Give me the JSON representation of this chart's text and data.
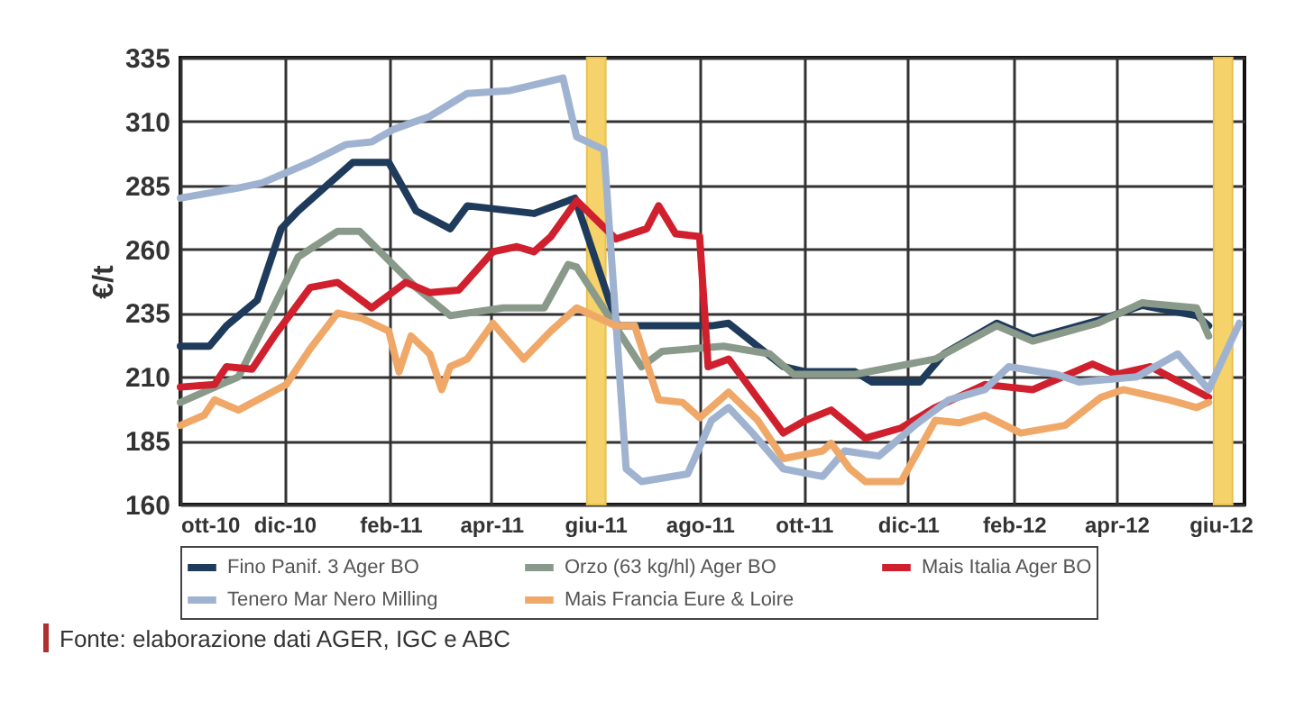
{
  "chart_data": {
    "type": "line",
    "ylabel": "€/t",
    "xlim": [
      "2010-10-01",
      "2012-06-15"
    ],
    "ylim": [
      160,
      335
    ],
    "yticks": [
      160,
      185,
      210,
      235,
      260,
      285,
      310,
      335
    ],
    "xticks": [
      {
        "value": "2010-10",
        "label": "ott-10"
      },
      {
        "value": "2010-12",
        "label": "dic-10"
      },
      {
        "value": "2011-02",
        "label": "feb-11"
      },
      {
        "value": "2011-04",
        "label": "apr-11"
      },
      {
        "value": "2011-06",
        "label": "giu-11"
      },
      {
        "value": "2011-08",
        "label": "ago-11"
      },
      {
        "value": "2011-10",
        "label": "ott-11"
      },
      {
        "value": "2011-12",
        "label": "dic-11"
      },
      {
        "value": "2012-02",
        "label": "feb-12"
      },
      {
        "value": "2012-04",
        "label": "apr-12"
      },
      {
        "value": "2012-06",
        "label": "giu-12"
      }
    ],
    "grid": true,
    "legend": "bottom",
    "bands": [
      {
        "axis": "x",
        "from": "2011-05-27",
        "to": "2011-06-07",
        "color": "#f5d36a"
      },
      {
        "axis": "x",
        "from": "2012-05-28",
        "to": "2012-06-08",
        "color": "#f5d36a"
      }
    ],
    "annotations": [
      "Fonte: elaborazione dati AGER, IGC e ABC"
    ],
    "series": [
      {
        "name": "Fino Panif. 3 Ager BO",
        "color": "#1f3b5c",
        "x": [
          "2010-10-01",
          "2010-10-18",
          "2010-10-28",
          "2010-11-15",
          "2010-11-29",
          "2010-12-09",
          "2011-01-10",
          "2011-01-31",
          "2011-02-16",
          "2011-03-08",
          "2011-03-18",
          "2011-04-26",
          "2011-05-20",
          "2011-06-14",
          "2011-08-08",
          "2011-08-18",
          "2011-09-19",
          "2011-10-02",
          "2011-10-31",
          "2011-11-10",
          "2011-12-08",
          "2011-12-22",
          "2012-01-22",
          "2012-02-12",
          "2012-03-21",
          "2012-04-16",
          "2012-05-18",
          "2012-05-25"
        ],
        "values": [
          222,
          222,
          230,
          240,
          268,
          275,
          294,
          294,
          275,
          268,
          277,
          274,
          280,
          230,
          230,
          231,
          214,
          212,
          212,
          208,
          208,
          219,
          231,
          225,
          232,
          238,
          234,
          230
        ]
      },
      {
        "name": "Orzo (63 kg/hl) Ager BO",
        "color": "#8a9a8a",
        "x": [
          "2010-10-01",
          "2010-11-04",
          "2010-11-25",
          "2010-12-09",
          "2011-01-01",
          "2011-01-14",
          "2011-02-16",
          "2011-03-08",
          "2011-04-08",
          "2011-05-02",
          "2011-05-16",
          "2011-05-21",
          "2011-06-28",
          "2011-07-10",
          "2011-08-15",
          "2011-09-11",
          "2011-09-25",
          "2011-10-31",
          "2011-12-17",
          "2012-01-22",
          "2012-02-12",
          "2012-03-21",
          "2012-04-16",
          "2012-05-18",
          "2012-05-25"
        ],
        "values": [
          200,
          210,
          238,
          257,
          267,
          267,
          245,
          234,
          237,
          237,
          254,
          253,
          214,
          220,
          222,
          219,
          211,
          211,
          217,
          230,
          224,
          231,
          239,
          237,
          226
        ]
      },
      {
        "name": "Mais Italia Ager BO",
        "color": "#d0202e",
        "x": [
          "2010-10-01",
          "2010-10-21",
          "2010-10-28",
          "2010-11-12",
          "2010-11-25",
          "2010-12-16",
          "2011-01-01",
          "2011-01-21",
          "2011-02-10",
          "2011-02-24",
          "2011-03-13",
          "2011-04-02",
          "2011-04-16",
          "2011-04-26",
          "2011-05-06",
          "2011-05-21",
          "2011-06-13",
          "2011-07-01",
          "2011-07-08",
          "2011-07-18",
          "2011-08-01",
          "2011-08-06",
          "2011-08-18",
          "2011-09-19",
          "2011-10-02",
          "2011-10-17",
          "2011-11-06",
          "2011-11-27",
          "2011-12-17",
          "2012-01-15",
          "2012-01-29",
          "2012-02-12",
          "2012-03-18",
          "2012-04-01",
          "2012-04-21",
          "2012-05-25"
        ],
        "values": [
          206,
          207,
          214,
          213,
          226,
          245,
          247,
          237,
          247,
          243,
          244,
          259,
          261,
          259,
          265,
          279,
          264,
          268,
          277,
          266,
          265,
          214,
          217,
          188,
          193,
          197,
          186,
          190,
          198,
          207,
          206,
          205,
          215,
          211,
          214,
          202
        ]
      },
      {
        "name": "Tenero Mar Nero Milling",
        "color": "#9fb3d1",
        "x": [
          "2010-10-01",
          "2010-11-04",
          "2010-11-18",
          "2010-12-16",
          "2011-01-06",
          "2011-01-21",
          "2011-02-03",
          "2011-02-24",
          "2011-03-18",
          "2011-04-11",
          "2011-05-13",
          "2011-05-21",
          "2011-06-06",
          "2011-06-19",
          "2011-06-28",
          "2011-07-25",
          "2011-08-08",
          "2011-08-18",
          "2011-09-01",
          "2011-09-19",
          "2011-10-12",
          "2011-10-25",
          "2011-11-14",
          "2011-12-05",
          "2011-12-25",
          "2012-01-15",
          "2012-01-29",
          "2012-02-26",
          "2012-03-10",
          "2012-04-13",
          "2012-05-07",
          "2012-05-25",
          "2012-06-12"
        ],
        "values": [
          280,
          284,
          286,
          294,
          301,
          302,
          307,
          312,
          321,
          322,
          327,
          304,
          299,
          174,
          169,
          172,
          193,
          198,
          188,
          174,
          171,
          181,
          179,
          191,
          201,
          205,
          214,
          211,
          208,
          210,
          219,
          205,
          231
        ]
      },
      {
        "name": "Mais Francia Eure & Loire",
        "color": "#f0a868",
        "x": [
          "2010-10-01",
          "2010-10-15",
          "2010-10-21",
          "2010-11-04",
          "2010-11-18",
          "2010-12-02",
          "2010-12-16",
          "2011-01-01",
          "2011-01-15",
          "2011-01-31",
          "2011-02-06",
          "2011-02-13",
          "2011-02-24",
          "2011-03-03",
          "2011-03-08",
          "2011-03-18",
          "2011-04-02",
          "2011-04-20",
          "2011-05-06",
          "2011-05-21",
          "2011-06-13",
          "2011-06-24",
          "2011-07-08",
          "2011-07-22",
          "2011-08-01",
          "2011-08-18",
          "2011-09-04",
          "2011-09-19",
          "2011-10-12",
          "2011-10-17",
          "2011-10-28",
          "2011-11-06",
          "2011-11-27",
          "2011-12-17",
          "2011-12-31",
          "2012-01-15",
          "2012-02-05",
          "2012-03-02",
          "2012-03-23",
          "2012-04-05",
          "2012-05-02",
          "2012-05-18",
          "2012-05-25"
        ],
        "values": [
          191,
          195,
          201,
          197,
          202,
          207,
          221,
          235,
          233,
          228,
          212,
          226,
          219,
          205,
          214,
          217,
          231,
          217,
          228,
          237,
          230,
          230,
          201,
          200,
          194,
          204,
          193,
          178,
          181,
          184,
          174,
          169,
          169,
          193,
          192,
          195,
          188,
          191,
          202,
          205,
          201,
          198,
          200
        ]
      }
    ]
  }
}
